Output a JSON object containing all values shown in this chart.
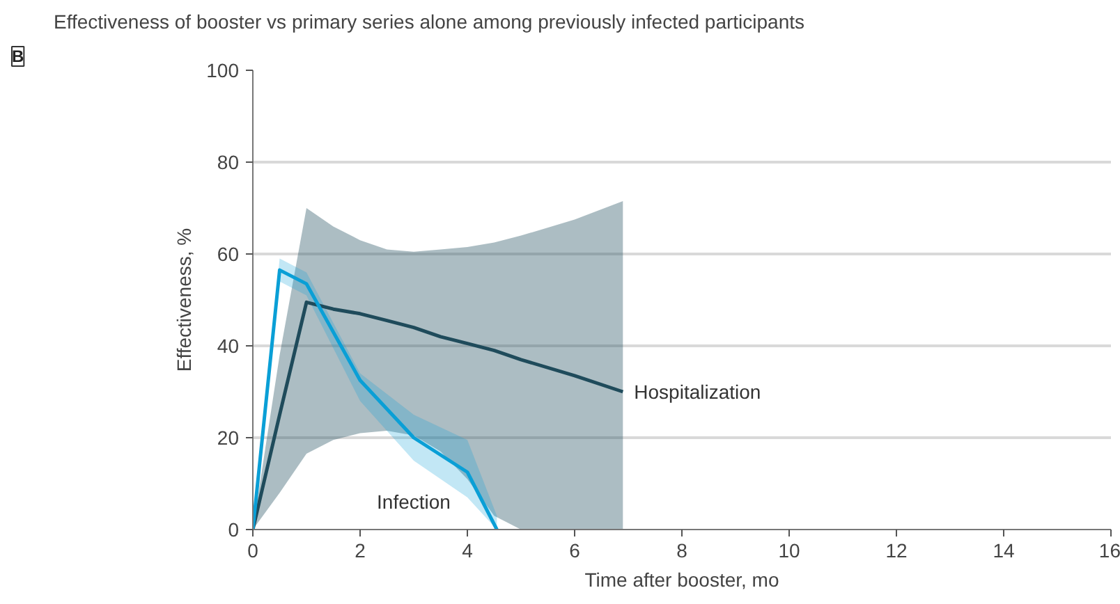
{
  "chart_data": {
    "type": "line",
    "title": "Effectiveness of booster vs primary series alone among previously infected participants",
    "annotations": [
      "B"
    ],
    "xlabel": "Time after booster, mo",
    "ylabel": "Effectiveness, %",
    "xlim": [
      0,
      16
    ],
    "ylim": [
      0,
      100
    ],
    "xticks": [
      0,
      2,
      4,
      6,
      8,
      10,
      12,
      14,
      16
    ],
    "yticks": [
      0,
      20,
      40,
      60,
      80,
      100
    ],
    "grid": "y",
    "marker": "none",
    "line_style": "solid",
    "series": [
      {
        "name": "Hospitalization",
        "color": "#1f4b5b",
        "x": [
          0,
          0.5,
          1,
          1.5,
          2,
          2.5,
          3,
          3.5,
          4,
          4.5,
          5,
          6,
          6.9
        ],
        "values": [
          0,
          25,
          49.5,
          48,
          47,
          45.5,
          44,
          42,
          40.5,
          39,
          37,
          33.5,
          30
        ],
        "lower": [
          0,
          8,
          16.5,
          19.5,
          21,
          21.5,
          20.5,
          17,
          11,
          3,
          0,
          0,
          0
        ],
        "upper": [
          0,
          38,
          70,
          66,
          63,
          61,
          60.5,
          61,
          61.5,
          62.5,
          64,
          67.5,
          71.5
        ]
      },
      {
        "name": "Infection",
        "color": "#0a9fd6",
        "x": [
          0,
          0.5,
          1,
          2,
          3,
          4,
          4.55
        ],
        "values": [
          0,
          56.5,
          53.5,
          32.5,
          20,
          12.5,
          0
        ],
        "lower": [
          0,
          54,
          51,
          28,
          15,
          7,
          0
        ],
        "upper": [
          0,
          59,
          56,
          34,
          25,
          19.5,
          3
        ]
      }
    ]
  }
}
